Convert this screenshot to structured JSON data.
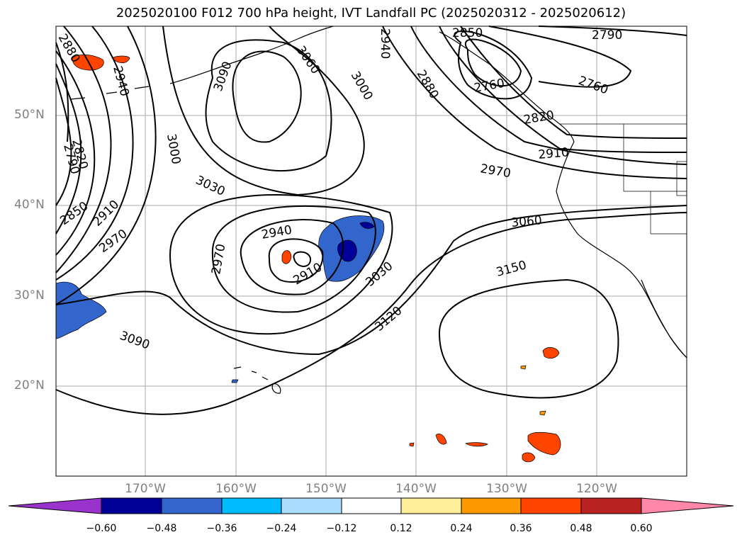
{
  "title": "2025020100 F012 700 hPa height, IVT Landfall PC (2025020312 - 2025020612)",
  "map": {
    "lat_labels": [
      "50°N",
      "40°N",
      "30°N",
      "20°N"
    ],
    "lon_labels": [
      "170°W",
      "160°W",
      "150°W",
      "140°W",
      "130°W",
      "120°W"
    ],
    "contour_labels": [
      "2880",
      "2940",
      "3090",
      "3060",
      "3000",
      "2940",
      "2880",
      "2850",
      "2760",
      "2790",
      "2760",
      "2820",
      "2910",
      "2970",
      "2790",
      "2820",
      "3000",
      "3030",
      "2850",
      "2910",
      "2970",
      "2940",
      "2970",
      "2910",
      "3030",
      "3060",
      "3150",
      "3120",
      "3090"
    ],
    "grid_color": "#aaaaaa",
    "land_outline_color": "#000000"
  },
  "colorbar": {
    "colors": [
      "#9933cc",
      "#000099",
      "#3366cc",
      "#00bbff",
      "#aaddff",
      "#ffffff",
      "#ffee99",
      "#ff9900",
      "#ff4400",
      "#bb2222",
      "#ff88aa"
    ],
    "ticks": [
      "−0.60",
      "−0.48",
      "−0.36",
      "−0.24",
      "−0.12",
      "0.12",
      "0.24",
      "0.36",
      "0.48",
      "0.60"
    ]
  }
}
